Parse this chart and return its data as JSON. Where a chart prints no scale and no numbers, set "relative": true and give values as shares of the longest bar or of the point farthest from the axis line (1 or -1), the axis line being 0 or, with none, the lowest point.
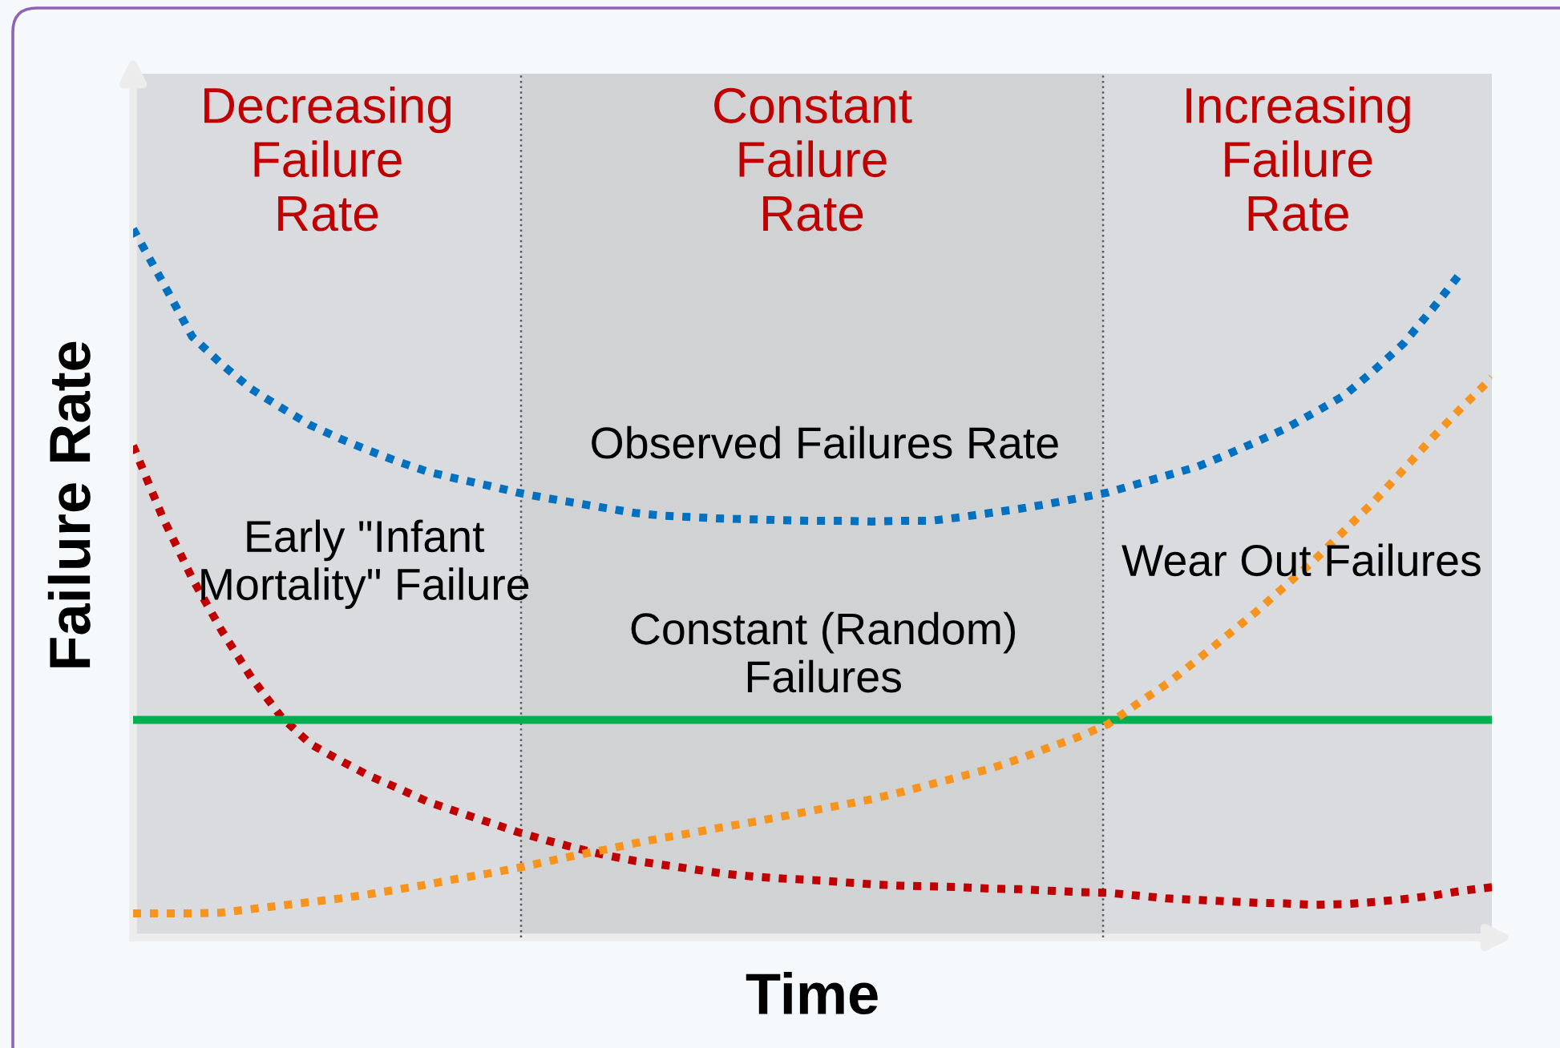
{
  "chart_data": {
    "type": "line",
    "relative": true,
    "xlabel": "Time",
    "ylabel": "Failure Rate",
    "annotations": [
      "Decreasing\nFailure\nRate",
      "Constant\nFailure\nRate",
      "Increasing\nFailure\nRate"
    ],
    "categories": [
      null,
      null,
      null,
      null,
      null,
      null,
      null,
      null,
      null,
      null,
      null,
      null,
      null,
      null,
      null,
      null,
      null,
      null,
      null,
      null,
      null,
      null,
      null,
      null,
      null,
      null,
      null,
      null,
      null,
      null,
      null,
      null,
      null,
      null,
      null,
      null,
      null,
      null,
      null,
      null,
      null,
      null,
      null,
      null,
      null,
      null,
      null
    ],
    "series": [
      {
        "name": "Observed Failures Rate",
        "color": "#0070c0",
        "line_style": "dotted",
        "values": [
          1.0,
          0.925,
          0.848,
          0.809,
          0.774,
          0.748,
          0.723,
          0.704,
          0.687,
          0.671,
          0.657,
          0.647,
          0.638,
          0.628,
          0.62,
          0.613,
          0.606,
          0.599,
          0.595,
          0.593,
          0.591,
          0.59,
          0.589,
          0.588,
          0.588,
          0.587,
          0.588,
          0.588,
          0.593,
          0.599,
          0.605,
          0.612,
          0.62,
          0.628,
          0.64,
          0.652,
          0.664,
          0.681,
          0.699,
          0.718,
          0.741,
          0.765,
          0.8,
          0.838,
          0.888,
          0.941,
          null
        ]
      },
      {
        "name": "Early \"Infant\nMortality\" Failure",
        "color": "#c00000",
        "line_style": "dotted",
        "values": [
          0.694,
          0.593,
          0.507,
          0.433,
          0.367,
          0.312,
          0.273,
          0.25,
          0.228,
          0.21,
          0.191,
          0.177,
          0.163,
          0.149,
          0.137,
          0.126,
          0.116,
          0.108,
          0.102,
          0.096,
          0.09,
          0.086,
          0.083,
          0.081,
          0.078,
          0.075,
          0.073,
          0.072,
          0.071,
          0.069,
          0.068,
          0.066,
          0.064,
          0.063,
          0.059,
          0.055,
          0.053,
          0.051,
          0.049,
          0.048,
          0.046,
          0.047,
          0.05,
          0.054,
          0.059,
          0.066,
          0.071
        ]
      },
      {
        "name": "Constant (Random)\nFailures",
        "color": "#00b050",
        "line_style": "solid",
        "values": [
          0.307,
          0.307,
          0.307,
          0.307,
          0.307,
          0.307,
          0.307,
          0.307,
          0.307,
          0.307,
          0.307,
          0.307,
          0.307,
          0.307,
          0.307,
          0.307,
          0.307,
          0.307,
          0.307,
          0.307,
          0.307,
          0.307,
          0.307,
          0.307,
          0.307,
          0.307,
          0.307,
          0.307,
          0.307,
          0.307,
          0.307,
          0.307,
          0.307,
          0.307,
          0.307,
          0.307,
          0.307,
          0.307,
          0.307,
          0.307,
          0.307,
          0.307,
          0.307,
          0.307,
          0.307,
          0.307,
          0.307
        ]
      },
      {
        "name": "Wear Out Failures",
        "color": "#f7941d",
        "line_style": "dotted",
        "values": [
          0.034,
          0.034,
          0.034,
          0.035,
          0.04,
          0.045,
          0.05,
          0.055,
          0.061,
          0.068,
          0.075,
          0.083,
          0.09,
          0.098,
          0.107,
          0.116,
          0.124,
          0.133,
          0.141,
          0.148,
          0.156,
          0.163,
          0.171,
          0.179,
          0.187,
          0.195,
          0.205,
          0.216,
          0.227,
          0.238,
          0.252,
          0.268,
          0.283,
          0.301,
          0.33,
          0.358,
          0.391,
          0.425,
          0.459,
          0.496,
          0.533,
          0.574,
          0.615,
          0.66,
          0.706,
          0.749,
          0.79
        ]
      }
    ]
  }
}
